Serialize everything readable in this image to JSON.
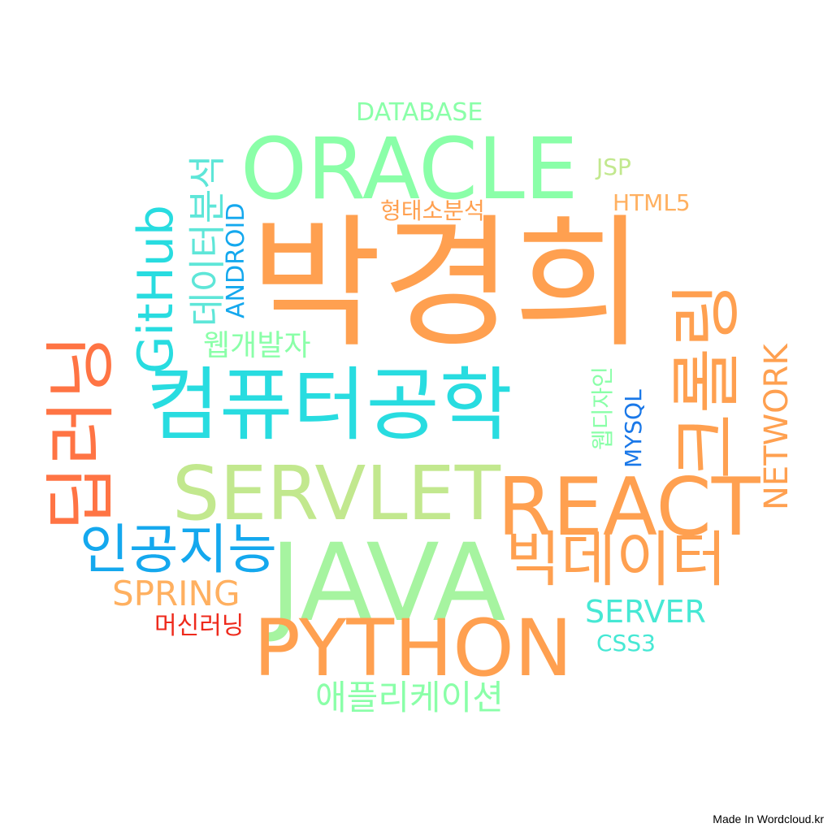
{
  "words": {
    "parkkyunghee": "박경희",
    "oracle": "ORACLE",
    "java": "JAVA",
    "computer_engineering": "컴퓨터공학",
    "servlet": "SERVLET",
    "react": "REACT",
    "python": "PYTHON",
    "bigdata": "빅데이터",
    "ai": "인공지능",
    "deep_learning": "딥러닝",
    "crawling": "크롤링",
    "github": "GitHub",
    "data_analysis": "데이터분석",
    "android": "ANDROID",
    "web_developer": "웹개발자",
    "morph_analysis": "형태소분석",
    "application": "애플리케이션",
    "spring": "SPRING",
    "machine_learning": "머신러닝",
    "server": "SERVER",
    "css3": "CSS3",
    "network": "NETWORK",
    "web_design": "웹디자인",
    "mysql": "MYSQL",
    "html5": "HTML5",
    "jsp": "JSP",
    "database": "DATABASE"
  },
  "colors": {
    "orange": "#ffa050",
    "light_orange": "#ffb060",
    "coral": "#ff7444",
    "red": "#ee2a1c",
    "mint": "#8affa8",
    "light_green": "#a6f4a0",
    "yellow_green": "#c2e88e",
    "cyan": "#28dce0",
    "turquoise": "#46e8d4",
    "sky_blue": "#14a8ee",
    "blue": "#1a78e8"
  },
  "footer": {
    "credit": "Made In Wordcloud.kr"
  }
}
